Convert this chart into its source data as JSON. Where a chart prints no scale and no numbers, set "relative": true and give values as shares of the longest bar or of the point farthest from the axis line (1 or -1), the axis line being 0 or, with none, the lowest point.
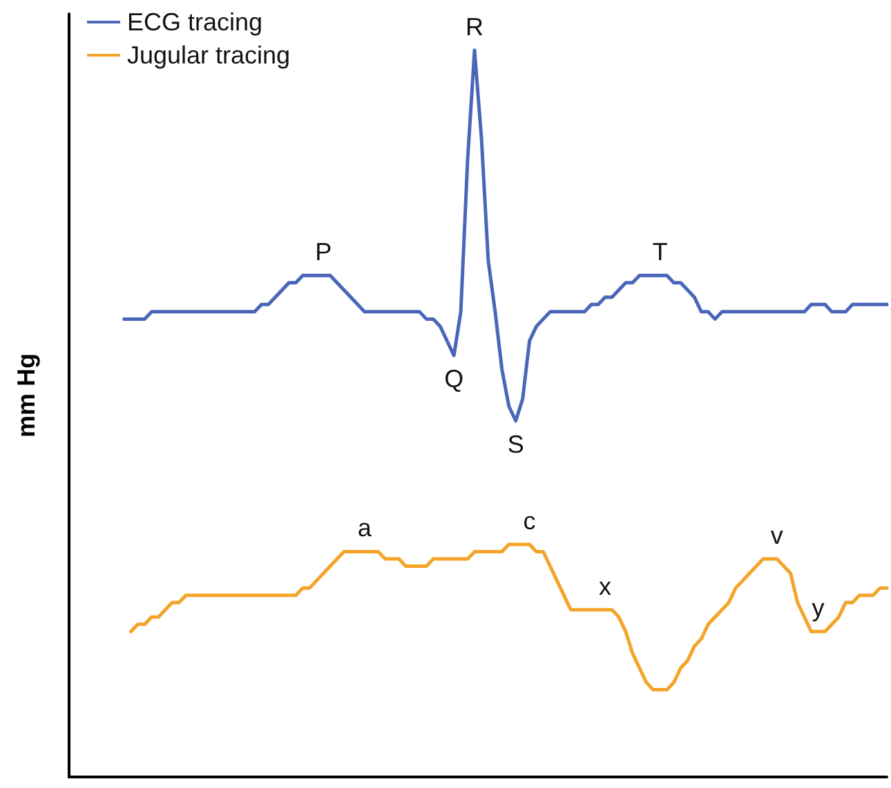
{
  "chart_data": {
    "type": "line",
    "relative": true,
    "ylabel": "mm Hg",
    "legend": "top left",
    "line_style": "solid",
    "categories": [
      null,
      null,
      null,
      null,
      null,
      null,
      null,
      null,
      null,
      null,
      null,
      null,
      null,
      null,
      null,
      null,
      null,
      null,
      null,
      null,
      null,
      null,
      null,
      null,
      null,
      null,
      null,
      null,
      null,
      null,
      null,
      null,
      null,
      null,
      null,
      null,
      null,
      null,
      null,
      null,
      null,
      null,
      null,
      null,
      null,
      null,
      null,
      null,
      null,
      null,
      null,
      null,
      null,
      null,
      null,
      null,
      null,
      null,
      null,
      null,
      null,
      null,
      null,
      null,
      null,
      null,
      null,
      null,
      null,
      null,
      null,
      null,
      null,
      null,
      null,
      null,
      null,
      null,
      null,
      null,
      null,
      null,
      null,
      null,
      null,
      null,
      null,
      null,
      null,
      null,
      null,
      null,
      null,
      null,
      null,
      null,
      null,
      null,
      null,
      null,
      null,
      null,
      null,
      null,
      null,
      null,
      null,
      null,
      null,
      null,
      null,
      null,
      null,
      null,
      null,
      null,
      null,
      null,
      null,
      null
    ],
    "series": [
      {
        "name": "ECG tracing",
        "color": "#4a66b8",
        "values": [
          null,
          null,
          null,
          null,
          null,
          null,
          null,
          null,
          0.63,
          0.63,
          0.63,
          0.63,
          0.64,
          0.64,
          0.64,
          0.64,
          0.64,
          0.64,
          0.64,
          0.64,
          0.64,
          0.64,
          0.64,
          0.64,
          0.64,
          0.64,
          0.64,
          0.64,
          0.65,
          0.65,
          0.66,
          0.67,
          0.68,
          0.68,
          0.69,
          0.69,
          0.69,
          0.69,
          0.69,
          0.68,
          0.67,
          0.66,
          0.65,
          0.64,
          0.64,
          0.64,
          0.64,
          0.64,
          0.64,
          0.64,
          0.64,
          0.64,
          0.63,
          0.63,
          0.62,
          0.6,
          0.58,
          0.64,
          0.85,
          1,
          0.88,
          0.71,
          0.64,
          0.56,
          0.51,
          0.49,
          0.52,
          0.6,
          0.62,
          0.63,
          0.64,
          0.64,
          0.64,
          0.64,
          0.64,
          0.64,
          0.65,
          0.65,
          0.66,
          0.66,
          0.67,
          0.68,
          0.68,
          0.69,
          0.69,
          0.69,
          0.69,
          0.69,
          0.68,
          0.68,
          0.67,
          0.66,
          0.64,
          0.64,
          0.63,
          0.64,
          0.64,
          0.64,
          0.64,
          0.64,
          0.64,
          0.64,
          0.64,
          0.64,
          0.64,
          0.64,
          0.64,
          0.64,
          0.65,
          0.65,
          0.65,
          0.64,
          0.64,
          0.64,
          0.65,
          0.65,
          0.65,
          0.65,
          0.65,
          0.65
        ]
      },
      {
        "name": "Jugular tracing",
        "color": "#f5a42a",
        "values": [
          null,
          null,
          null,
          null,
          null,
          null,
          null,
          null,
          null,
          0.2,
          0.21,
          0.21,
          0.22,
          0.22,
          0.23,
          0.24,
          0.24,
          0.25,
          0.25,
          0.25,
          0.25,
          0.25,
          0.25,
          0.25,
          0.25,
          0.25,
          0.25,
          0.25,
          0.25,
          0.25,
          0.25,
          0.25,
          0.25,
          0.25,
          0.26,
          0.26,
          0.27,
          0.28,
          0.29,
          0.3,
          0.31,
          0.31,
          0.31,
          0.31,
          0.31,
          0.31,
          0.3,
          0.3,
          0.3,
          0.29,
          0.29,
          0.29,
          0.29,
          0.3,
          0.3,
          0.3,
          0.3,
          0.3,
          0.3,
          0.31,
          0.31,
          0.31,
          0.31,
          0.31,
          0.32,
          0.32,
          0.32,
          0.32,
          0.31,
          0.31,
          0.29,
          0.27,
          0.25,
          0.23,
          0.23,
          0.23,
          0.23,
          0.23,
          0.23,
          0.23,
          0.22,
          0.2,
          0.17,
          0.15,
          0.13,
          0.12,
          0.12,
          0.12,
          0.13,
          0.15,
          0.16,
          0.18,
          0.19,
          0.21,
          0.22,
          0.23,
          0.24,
          0.26,
          0.27,
          0.28,
          0.29,
          0.3,
          0.3,
          0.3,
          0.29,
          0.28,
          0.24,
          0.22,
          0.2,
          0.2,
          0.2,
          0.21,
          0.22,
          0.24,
          0.24,
          0.25,
          0.25,
          0.25,
          0.26,
          0.26
        ]
      }
    ],
    "annotations": [
      "P",
      "Q",
      "R",
      "S",
      "T",
      "a",
      "c",
      "x",
      "v",
      "y"
    ]
  }
}
